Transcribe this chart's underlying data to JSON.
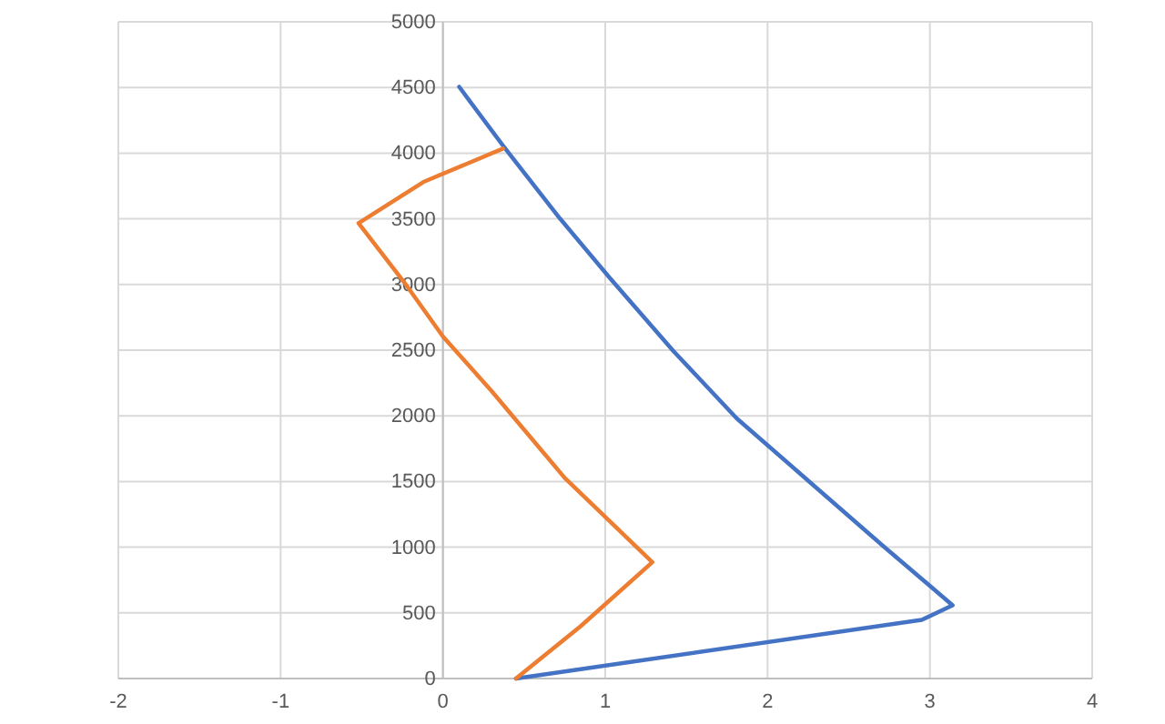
{
  "chart_data": {
    "type": "line",
    "xlim": [
      -2,
      4
    ],
    "xticks": [
      -2,
      -1,
      0,
      1,
      2,
      3,
      4
    ],
    "ylim": [
      0,
      5000
    ],
    "yticks": [
      0,
      500,
      1000,
      1500,
      2000,
      2500,
      3000,
      3500,
      4000,
      4500,
      5000
    ],
    "grid": true,
    "marker": "none",
    "line_style": "solid",
    "series": [
      {
        "color": "#4472c4",
        "x": [
          0.45,
          2.95,
          3.14,
          2.71,
          2.26,
          1.81,
          1.42,
          1.03,
          0.72,
          0.37,
          0.1
        ],
        "values": [
          0,
          447,
          558,
          1011,
          1496,
          1981,
          2493,
          3047,
          3504,
          4058,
          4505
        ]
      },
      {
        "color": "#ed7d31",
        "x": [
          0.45,
          0.85,
          1.29,
          0.75,
          0.3,
          0.0,
          -0.24,
          -0.52,
          -0.12,
          0.37
        ],
        "values": [
          0,
          400,
          886,
          1528,
          2188,
          2604,
          3019,
          3467,
          3781,
          4035
        ]
      }
    ]
  }
}
